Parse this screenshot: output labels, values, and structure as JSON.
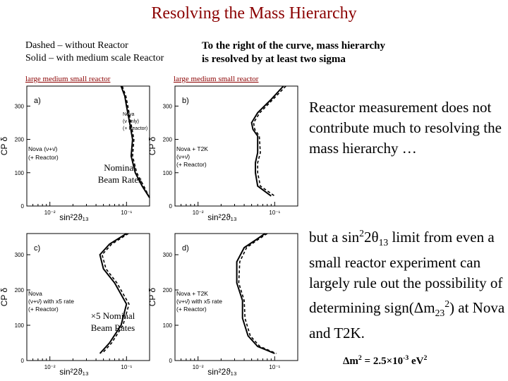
{
  "slide": {
    "title": "Resolving the Mass Hierarchy",
    "legend_line1": "Dashed – without Reactor",
    "legend_line2": "Solid – with medium scale Reactor",
    "note_line1": "To the right of the curve, mass  hierarchy",
    "note_line2": "is resolved by at least two sigma",
    "sublabel_left": "large  medium  small reactor",
    "sublabel_right": "large  medium  small reactor",
    "side_text_1": "Reactor measurement does not contribute much to resolving the mass hierarchy …",
    "side_text_2": {
      "part1": "but a sin",
      "sup1": "2",
      "part2": "2θ",
      "sub1": "13",
      "part3": " limit from even a small reactor experiment can largely rule out the possibility of determining sign(Δm",
      "sub2": "23",
      "sup2": "2",
      "part4": ") at Nova and T2K."
    },
    "footer": {
      "part1": "Δm",
      "sup1": "2",
      "part2": " = 2.5×10",
      "sup2": "-3",
      "part3": " eV",
      "sup3": "2"
    }
  },
  "colors": {
    "title": "#8b0000",
    "curve": "#000000"
  },
  "chart_data": [
    {
      "type": "line",
      "panel_label": "a)",
      "xlabel": "sin²2ϑ₁₃",
      "ylabel": "CP δ",
      "x_scale": "log",
      "xlim": [
        0.005,
        0.2
      ],
      "ylim": [
        0,
        360
      ],
      "x_tick_labels": [
        "10⁻²",
        "10⁻¹"
      ],
      "y_tick_labels": [
        "0",
        "100",
        "200",
        "300"
      ],
      "legend": [
        "Nova (ν+ν̄)",
        "(+ Reactor)",
        "Nova",
        "(ν only)",
        "(+ Reactor)"
      ],
      "annotation_lines": [
        "Nominal",
        "Beam Rates"
      ],
      "series": [
        {
          "style": "solid",
          "x": [
            0.085,
            0.095,
            0.1,
            0.11,
            0.12,
            0.115,
            0.13,
            0.16,
            0.2
          ],
          "y": [
            360,
            330,
            300,
            250,
            200,
            150,
            100,
            60,
            25
          ]
        },
        {
          "style": "dashed",
          "x": [
            0.088,
            0.098,
            0.104,
            0.114,
            0.125,
            0.12,
            0.136,
            0.168,
            0.2
          ],
          "y": [
            360,
            330,
            300,
            250,
            200,
            150,
            100,
            60,
            25
          ]
        }
      ]
    },
    {
      "type": "line",
      "panel_label": "b)",
      "xlabel": "sin²2ϑ₁₃",
      "ylabel": "CP δ",
      "x_scale": "log",
      "xlim": [
        0.005,
        0.2
      ],
      "ylim": [
        0,
        360
      ],
      "x_tick_labels": [
        "10⁻²",
        "10⁻¹"
      ],
      "y_tick_labels": [
        "0",
        "100",
        "200",
        "300"
      ],
      "legend": [
        "Nova + T2K",
        "(ν+ν̄)",
        "(+ Reactor)"
      ],
      "series": [
        {
          "style": "solid",
          "x": [
            0.13,
            0.09,
            0.06,
            0.05,
            0.052,
            0.06,
            0.06,
            0.056,
            0.056,
            0.06,
            0.09
          ],
          "y": [
            360,
            320,
            280,
            250,
            230,
            210,
            160,
            130,
            100,
            60,
            30
          ]
        },
        {
          "style": "dashed",
          "x": [
            0.14,
            0.095,
            0.064,
            0.053,
            0.055,
            0.063,
            0.065,
            0.06,
            0.06,
            0.065,
            0.1
          ],
          "y": [
            360,
            320,
            280,
            250,
            230,
            210,
            160,
            130,
            100,
            60,
            30
          ]
        }
      ]
    },
    {
      "type": "line",
      "panel_label": "c)",
      "xlabel": "sin²2ϑ₁₃",
      "ylabel": "CP δ",
      "x_scale": "log",
      "xlim": [
        0.005,
        0.2
      ],
      "ylim": [
        0,
        360
      ],
      "x_tick_labels": [
        "10⁻²",
        "10⁻¹"
      ],
      "y_tick_labels": [
        "0",
        "100",
        "200",
        "300"
      ],
      "legend": [
        "Nova",
        "(ν+ν̄) with x5 rate",
        "(+ Reactor)"
      ],
      "annotation_lines": [
        "×5 Nominal",
        "Beam Rates"
      ],
      "series": [
        {
          "style": "solid",
          "x": [
            0.1,
            0.06,
            0.045,
            0.05,
            0.07,
            0.1,
            0.085,
            0.06,
            0.045
          ],
          "y": [
            360,
            330,
            300,
            260,
            220,
            160,
            100,
            50,
            20
          ]
        },
        {
          "style": "dashed",
          "x": [
            0.106,
            0.064,
            0.048,
            0.054,
            0.075,
            0.108,
            0.09,
            0.064,
            0.048
          ],
          "y": [
            360,
            330,
            300,
            260,
            220,
            160,
            100,
            50,
            20
          ]
        }
      ]
    },
    {
      "type": "line",
      "panel_label": "d)",
      "xlabel": "sin²2ϑ₁₃",
      "ylabel": "CP δ",
      "x_scale": "log",
      "xlim": [
        0.005,
        0.2
      ],
      "ylim": [
        0,
        360
      ],
      "x_tick_labels": [
        "10⁻²",
        "10⁻¹"
      ],
      "y_tick_labels": [
        "0",
        "100",
        "200",
        "300"
      ],
      "legend": [
        "Nova + T2K",
        "(ν+ν̄) with x5 rate",
        "(+ Reactor)"
      ],
      "series": [
        {
          "style": "solid",
          "x": [
            0.075,
            0.055,
            0.04,
            0.032,
            0.032,
            0.038,
            0.038,
            0.045,
            0.06,
            0.1
          ],
          "y": [
            360,
            340,
            320,
            280,
            220,
            170,
            120,
            70,
            40,
            20
          ]
        },
        {
          "style": "dashed",
          "x": [
            0.08,
            0.058,
            0.043,
            0.035,
            0.034,
            0.04,
            0.041,
            0.048,
            0.064,
            0.105
          ],
          "y": [
            360,
            340,
            320,
            280,
            220,
            170,
            120,
            70,
            40,
            20
          ]
        }
      ]
    }
  ]
}
